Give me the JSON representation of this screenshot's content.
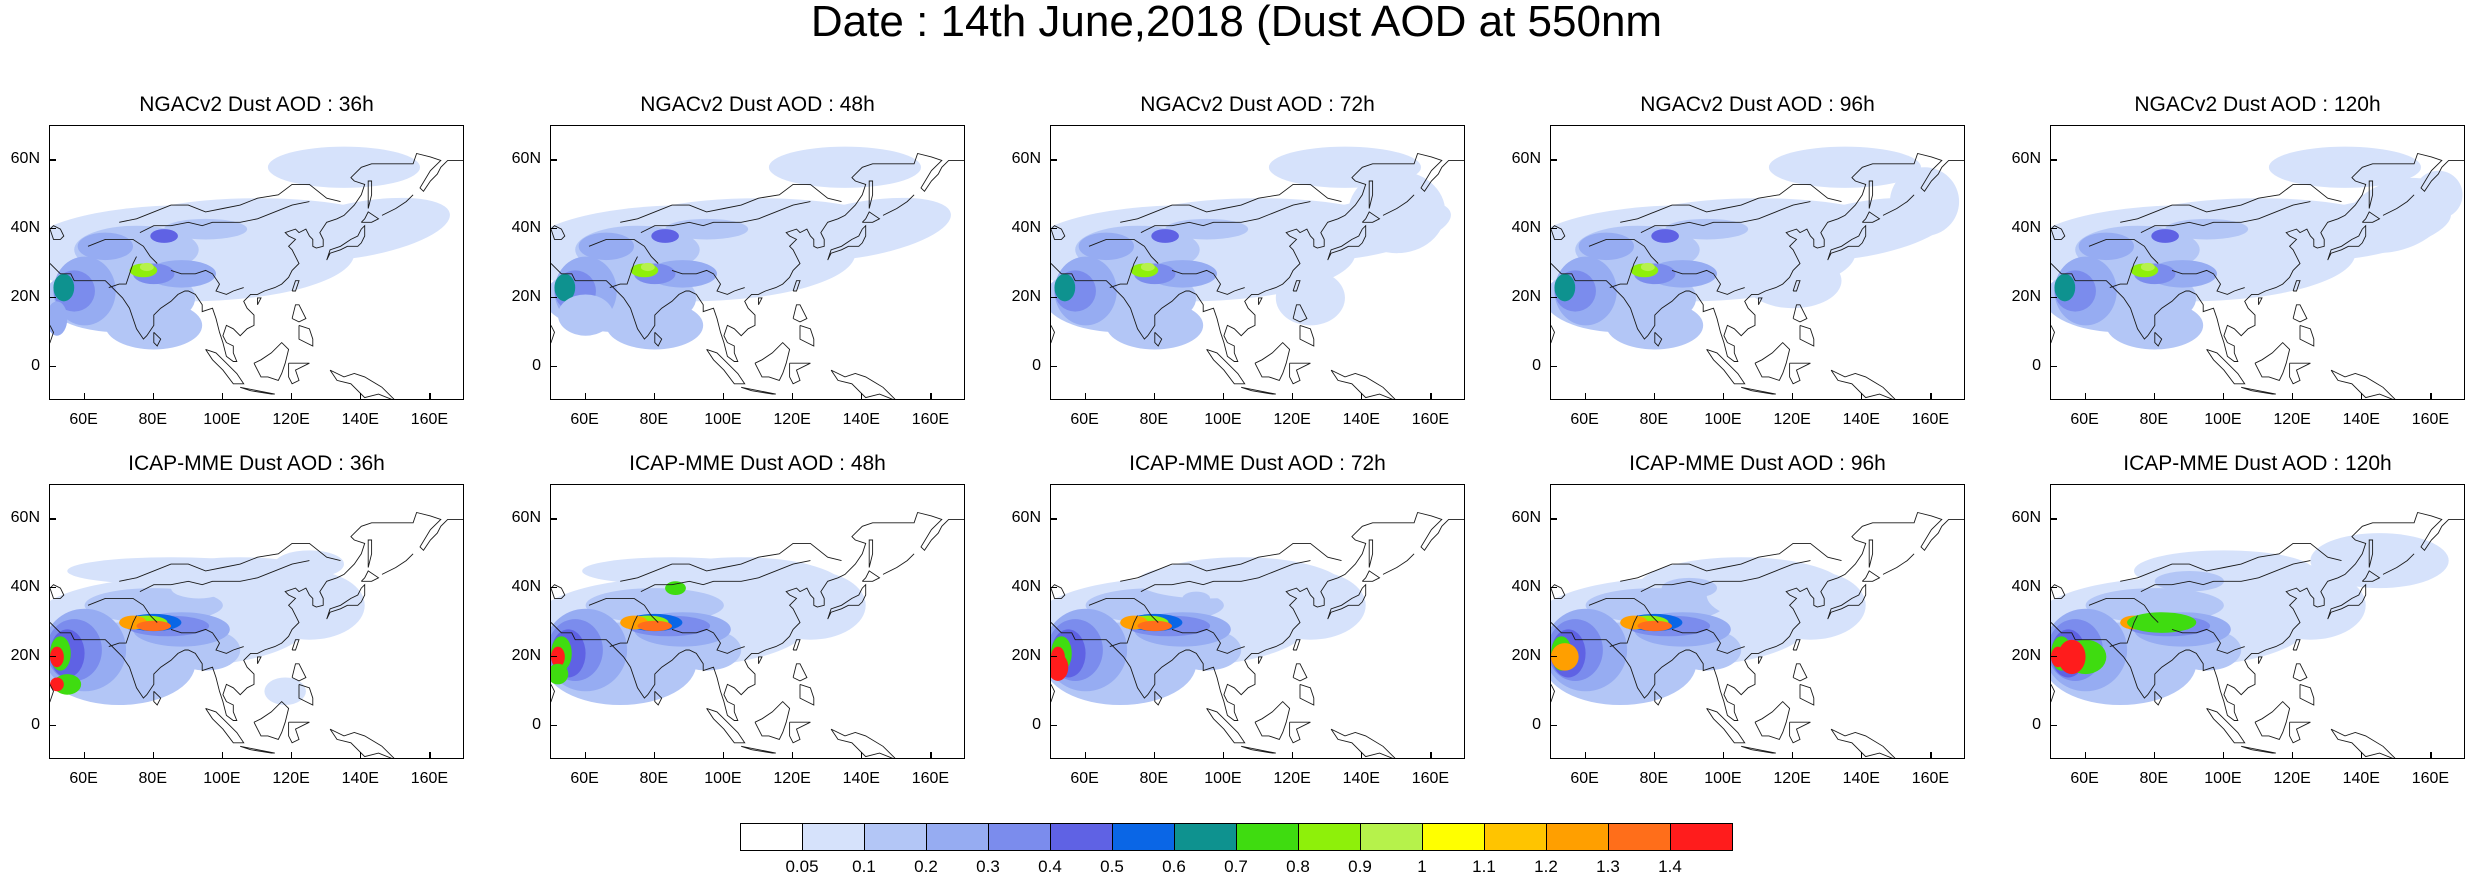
{
  "title": "Date : 14th June,2018 (Dust AOD at 550nm",
  "lat_labels": [
    "60N",
    "40N",
    "20N",
    "0"
  ],
  "lon_labels": [
    "60E",
    "80E",
    "100E",
    "120E",
    "140E",
    "160E"
  ],
  "panels": [
    {
      "title": "NGACv2 Dust AOD : 36h",
      "model": "NGACv2",
      "lead": "36h"
    },
    {
      "title": "NGACv2 Dust AOD : 48h",
      "model": "NGACv2",
      "lead": "48h"
    },
    {
      "title": "NGACv2 Dust AOD : 72h",
      "model": "NGACv2",
      "lead": "72h"
    },
    {
      "title": "NGACv2 Dust AOD : 96h",
      "model": "NGACv2",
      "lead": "96h"
    },
    {
      "title": "NGACv2 Dust AOD : 120h",
      "model": "NGACv2",
      "lead": "120h"
    },
    {
      "title": "ICAP-MME Dust AOD : 36h",
      "model": "ICAP-MME",
      "lead": "36h"
    },
    {
      "title": "ICAP-MME Dust AOD : 48h",
      "model": "ICAP-MME",
      "lead": "48h"
    },
    {
      "title": "ICAP-MME Dust AOD : 72h",
      "model": "ICAP-MME",
      "lead": "72h"
    },
    {
      "title": "ICAP-MME Dust AOD : 96h",
      "model": "ICAP-MME",
      "lead": "96h"
    },
    {
      "title": "ICAP-MME Dust AOD : 120h",
      "model": "ICAP-MME",
      "lead": "120h"
    }
  ],
  "map_extent": {
    "lon_min": 50,
    "lon_max": 170,
    "lat_min": -10,
    "lat_max": 70
  },
  "colorbar": {
    "levels": [
      "0.05",
      "0.1",
      "0.2",
      "0.3",
      "0.4",
      "0.5",
      "0.6",
      "0.7",
      "0.8",
      "0.9",
      "1",
      "1.1",
      "1.2",
      "1.3",
      "1.4"
    ],
    "colors": [
      "#ffffff",
      "#d6e2fb",
      "#b3c6f6",
      "#96acf2",
      "#7b8ced",
      "#5f62e4",
      "#0a66e6",
      "#0e928f",
      "#3fdc10",
      "#8ef00a",
      "#b6f24b",
      "#ffff00",
      "#ffc400",
      "#ff9f00",
      "#ff6e1a",
      "#ff1c1c"
    ]
  }
}
